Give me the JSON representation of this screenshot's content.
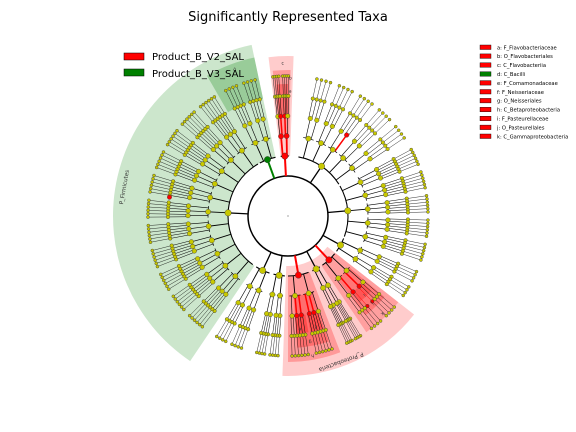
{
  "chart_data": {
    "type": "cladogram",
    "title": "Significantly Represented Taxa",
    "groups": [
      {
        "name": "Product_B_V2_SAL",
        "color": "#ff0000"
      },
      {
        "name": "Product_B_V3_SAL",
        "color": "#008000"
      }
    ],
    "biomarkers": [
      {
        "key": "a",
        "name": "a: F_Flavobacteriaceae",
        "group": "Product_B_V2_SAL"
      },
      {
        "key": "b",
        "name": "b: O_Flavobacteriales",
        "group": "Product_B_V2_SAL"
      },
      {
        "key": "c",
        "name": "c: C_Flavobacteriia",
        "group": "Product_B_V2_SAL"
      },
      {
        "key": "d",
        "name": "d: C_Bacilli",
        "group": "Product_B_V3_SAL"
      },
      {
        "key": "e",
        "name": "e: F_Comamonadaceae",
        "group": "Product_B_V2_SAL"
      },
      {
        "key": "f",
        "name": "f: F_Neisseriaceae",
        "group": "Product_B_V2_SAL"
      },
      {
        "key": "g",
        "name": "g: O_Neisseriales",
        "group": "Product_B_V2_SAL"
      },
      {
        "key": "h",
        "name": "h: C_Betaproteobacteria",
        "group": "Product_B_V2_SAL"
      },
      {
        "key": "i",
        "name": "i: F_Pasteurellaceae",
        "group": "Product_B_V2_SAL"
      },
      {
        "key": "j",
        "name": "j: O_Pasteurellales",
        "group": "Product_B_V2_SAL"
      },
      {
        "key": "k",
        "name": "k: C_Gammaproteobacteria",
        "group": "Product_B_V2_SAL"
      }
    ],
    "phylum_labels": [
      "P_Firmicutes",
      "P_Proteobacteria"
    ],
    "clade_letters": [
      "a",
      "b",
      "c",
      "d",
      "e",
      "f",
      "g",
      "h",
      "i",
      "j",
      "k"
    ]
  }
}
